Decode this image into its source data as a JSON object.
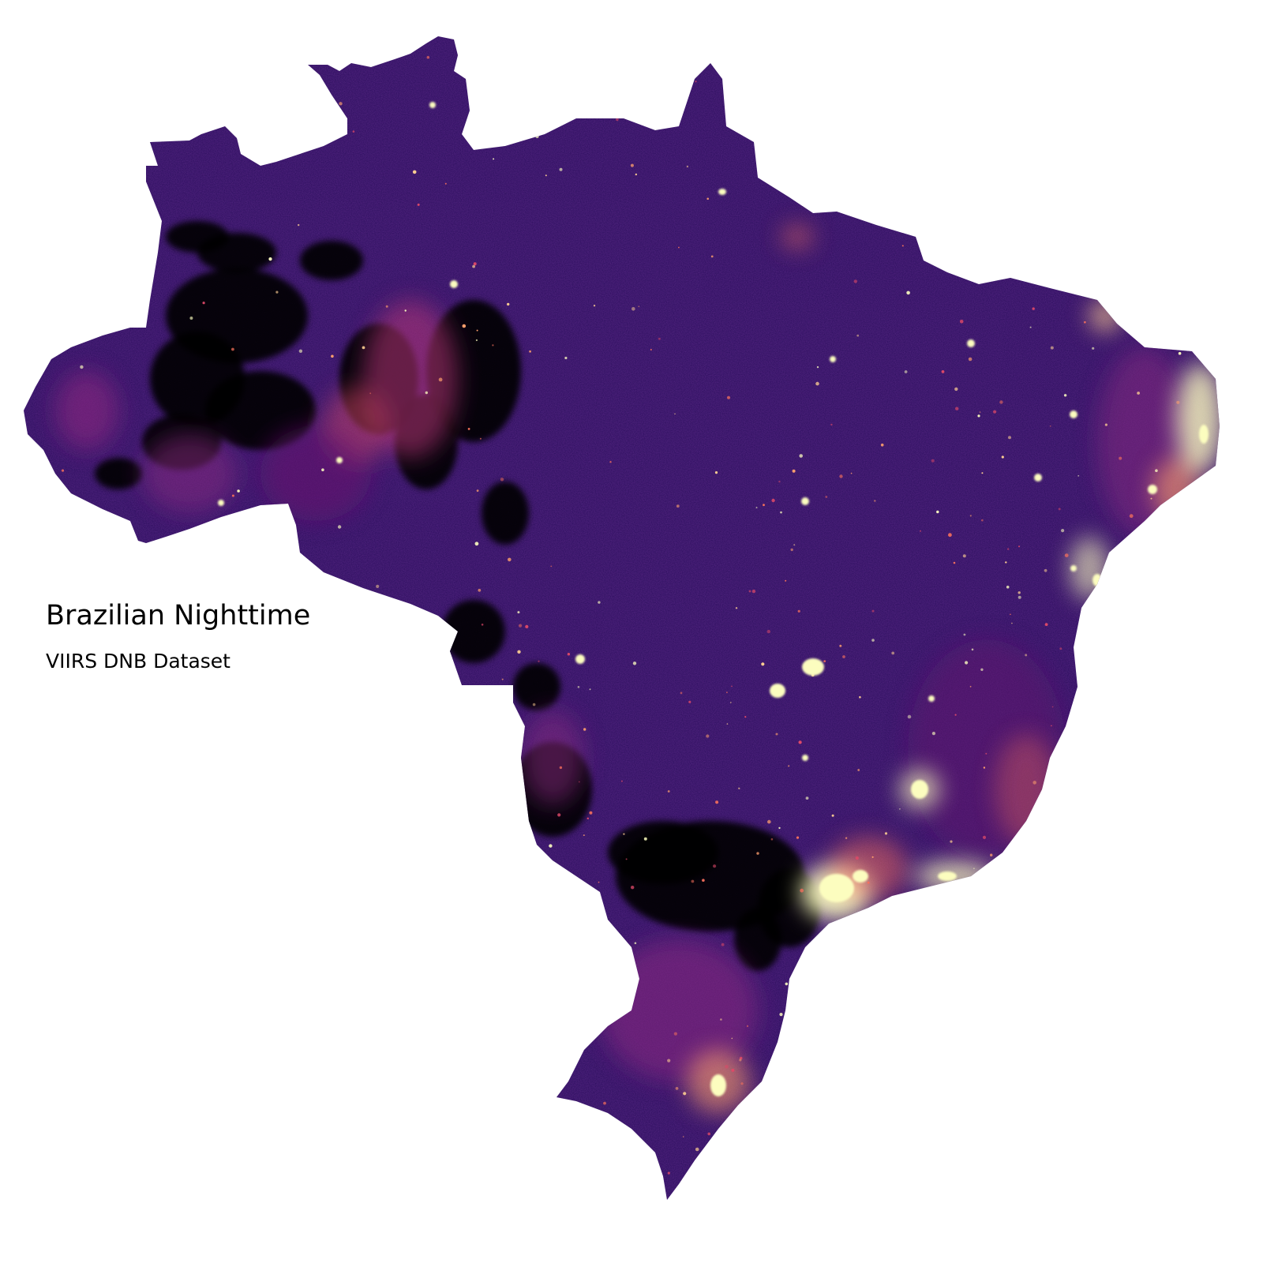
{
  "map": {
    "title": "Brazilian Nighttime",
    "subtitle": "VIIRS DNB Dataset",
    "colormap": [
      "#000004",
      "#280b54",
      "#3b0f70",
      "#65156e",
      "#8c2981",
      "#b73779",
      "#de4968",
      "#f7705c",
      "#fe9f6d",
      "#fecf92",
      "#fcfdbf"
    ],
    "background_color": "#ffffff",
    "land_base_color": "#2a0e5c"
  }
}
